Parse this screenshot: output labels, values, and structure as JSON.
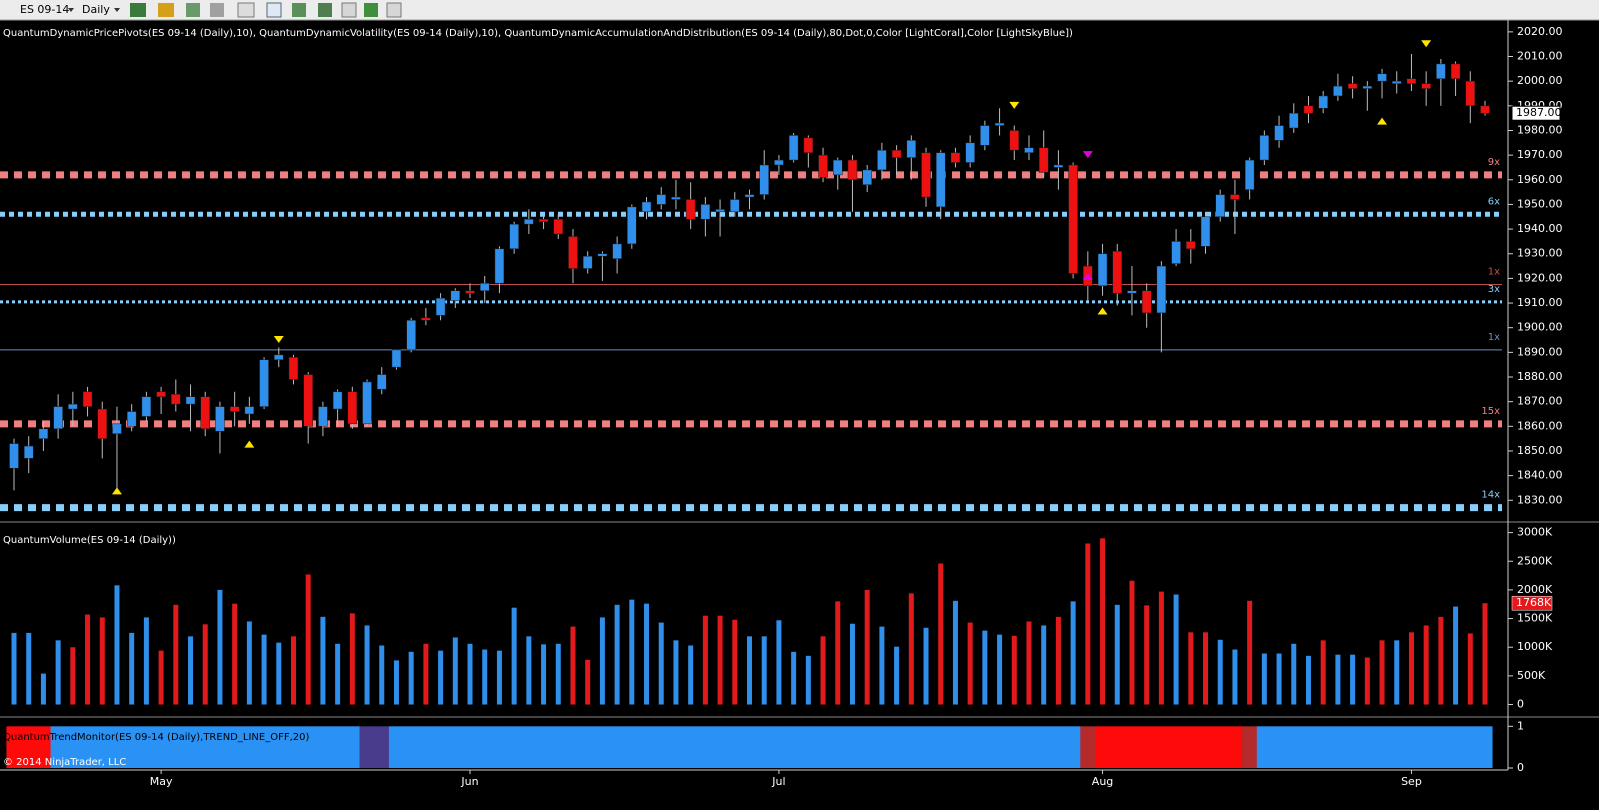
{
  "toolbar": {
    "instrument": "ES 09-14",
    "interval": "Daily"
  },
  "chart_data": [
    {
      "type": "candlestick",
      "title": "QuantumDynamicPricePivots(ES 09-14 (Daily),10), QuantumDynamicVolatility(ES 09-14 (Daily),10), QuantumDynamicAccumulationAndDistribution(ES 09-14 (Daily),80,Dot,0,Color [LightCoral],Color [LightSkyBlue])",
      "open": [
        1843,
        1847,
        1855,
        1859,
        1867,
        1874,
        1867,
        1857,
        1860,
        1864,
        1874,
        1873,
        1869,
        1872,
        1858,
        1868,
        1865,
        1868,
        1887,
        1888,
        1881,
        1860,
        1867,
        1874,
        1861,
        1875,
        1884,
        1891,
        1904,
        1905,
        1911,
        1915,
        1915,
        1918,
        1932,
        1942,
        1944,
        1944,
        1937,
        1924,
        1929,
        1928,
        1934,
        1947,
        1950,
        1952,
        1952,
        1944,
        1947,
        1947,
        1953,
        1954,
        1966,
        1968,
        1977,
        1970,
        1962,
        1968,
        1958,
        1964,
        1972,
        1969,
        1971,
        1949,
        1971,
        1967,
        1974,
        1982,
        1980,
        1971,
        1973,
        1965,
        1966,
        1925,
        1917,
        1931,
        1914,
        1915,
        1906,
        1926,
        1935,
        1933,
        1945,
        1954,
        1956,
        1968,
        1976,
        1981,
        1990,
        1989,
        1994,
        1999,
        1997,
        2000,
        1999,
        2001,
        1999,
        2001,
        2007,
        2000,
        1990
      ],
      "high": [
        1855,
        1856,
        1862,
        1873,
        1874,
        1876,
        1870,
        1868,
        1869,
        1874,
        1876,
        1879,
        1877,
        1874,
        1870,
        1874,
        1872,
        1888,
        1892,
        1889,
        1882,
        1870,
        1875,
        1876,
        1879,
        1884,
        1891,
        1904,
        1908,
        1914,
        1916,
        1918,
        1921,
        1933,
        1943,
        1948,
        1946,
        1946,
        1940,
        1931,
        1931,
        1937,
        1950,
        1953,
        1957,
        1960,
        1959,
        1953,
        1952,
        1955,
        1956,
        1972,
        1970,
        1979,
        1978,
        1973,
        1969,
        1970,
        1966,
        1975,
        1974,
        1978,
        1973,
        1972,
        1973,
        1978,
        1984,
        1989,
        1982,
        1978,
        1980,
        1972,
        1967,
        1931,
        1934,
        1934,
        1925,
        1918,
        1927,
        1940,
        1940,
        1947,
        1956,
        1960,
        1969,
        1980,
        1986,
        1991,
        1994,
        1996,
        2003,
        2002,
        2000,
        2005,
        2004,
        2011,
        2004,
        2009,
        2008,
        2004,
        1992
      ],
      "low": [
        1834,
        1841,
        1850,
        1855,
        1860,
        1864,
        1847,
        1834,
        1858,
        1862,
        1865,
        1866,
        1858,
        1856,
        1849,
        1860,
        1861,
        1867,
        1884,
        1877,
        1853,
        1856,
        1860,
        1859,
        1860,
        1873,
        1883,
        1890,
        1901,
        1903,
        1908,
        1912,
        1910,
        1914,
        1930,
        1938,
        1940,
        1936,
        1918,
        1922,
        1919,
        1922,
        1932,
        1944,
        1948,
        1948,
        1940,
        1937,
        1937,
        1945,
        1948,
        1952,
        1962,
        1967,
        1965,
        1959,
        1956,
        1947,
        1955,
        1960,
        1962,
        1960,
        1949,
        1944,
        1965,
        1965,
        1972,
        1978,
        1968,
        1968,
        1961,
        1956,
        1920,
        1910,
        1913,
        1909,
        1905,
        1900,
        1890,
        1925,
        1926,
        1930,
        1943,
        1938,
        1952,
        1966,
        1973,
        1979,
        1983,
        1987,
        1992,
        1993,
        1988,
        1993,
        1995,
        1996,
        1990,
        1990,
        1994,
        1983,
        1986
      ],
      "close": [
        1853,
        1852,
        1859,
        1868,
        1869,
        1868,
        1855,
        1861,
        1866,
        1872,
        1872,
        1869,
        1872,
        1859,
        1868,
        1866,
        1868,
        1887,
        1889,
        1879,
        1860,
        1868,
        1874,
        1861,
        1878,
        1881,
        1891,
        1903,
        1903,
        1912,
        1915,
        1914,
        1918,
        1932,
        1942,
        1944,
        1943,
        1938,
        1924,
        1929,
        1930,
        1934,
        1949,
        1951,
        1954,
        1953,
        1944,
        1950,
        1948,
        1952,
        1954,
        1966,
        1968,
        1978,
        1971,
        1961,
        1968,
        1960,
        1964,
        1972,
        1969,
        1976,
        1953,
        1971,
        1967,
        1975,
        1982,
        1983,
        1972,
        1973,
        1963,
        1966,
        1922,
        1917,
        1930,
        1914,
        1915,
        1906,
        1925,
        1935,
        1932,
        1945,
        1954,
        1952,
        1968,
        1978,
        1982,
        1987,
        1987,
        1994,
        1998,
        1997,
        1998,
        2003,
        2000,
        1999,
        1997,
        2007,
        2001,
        1990,
        1987
      ],
      "up_color": "#2f8fea",
      "down_color": "#ee1111",
      "wick_color": "#bdbdbd",
      "ylim": [
        1822,
        2024
      ],
      "yticks": [
        {
          "value": 1830,
          "label": "1830.00"
        },
        {
          "value": 1840,
          "label": "1840.00"
        },
        {
          "value": 1850,
          "label": "1850.00"
        },
        {
          "value": 1860,
          "label": "1860.00"
        },
        {
          "value": 1870,
          "label": "1870.00"
        },
        {
          "value": 1880,
          "label": "1880.00"
        },
        {
          "value": 1890,
          "label": "1890.00"
        },
        {
          "value": 1900,
          "label": "1900.00"
        },
        {
          "value": 1910,
          "label": "1910.00"
        },
        {
          "value": 1920,
          "label": "1920.00"
        },
        {
          "value": 1930,
          "label": "1930.00"
        },
        {
          "value": 1940,
          "label": "1940.00"
        },
        {
          "value": 1950,
          "label": "1950.00"
        },
        {
          "value": 1960,
          "label": "1960.00"
        },
        {
          "value": 1970,
          "label": "1970.00"
        },
        {
          "value": 1980,
          "label": "1980.00"
        },
        {
          "value": 1990,
          "label": "1990.00"
        },
        {
          "value": 2000,
          "label": "2000.00"
        },
        {
          "value": 2010,
          "label": "2010.00"
        },
        {
          "value": 2020,
          "label": "2020.00"
        }
      ],
      "levels": [
        {
          "value": 1962,
          "label": "9x",
          "color": "#f08080",
          "style": "dots-large"
        },
        {
          "value": 1946,
          "label": "6x",
          "color": "#87cefa",
          "style": "dots-medium"
        },
        {
          "value": 1917.5,
          "label": "1x",
          "color": "#c0504d",
          "style": "line"
        },
        {
          "value": 1910.5,
          "label": "3x",
          "color": "#87cefa",
          "style": "dots-small"
        },
        {
          "value": 1891,
          "label": "1x",
          "color": "#6a8fc0",
          "style": "line"
        },
        {
          "value": 1861,
          "label": "15x",
          "color": "#f08080",
          "style": "dots-large"
        },
        {
          "value": 1827,
          "label": "14x",
          "color": "#87cefa",
          "style": "dots-large"
        }
      ],
      "markers": [
        {
          "x": 7,
          "y": 1834,
          "color": "#ffe400",
          "direction": "up"
        },
        {
          "x": 16,
          "y": 1853,
          "color": "#ffe400",
          "direction": "up"
        },
        {
          "x": 18,
          "y": 1895,
          "color": "#ffe400",
          "direction": "down"
        },
        {
          "x": 68,
          "y": 1990,
          "color": "#ffe400",
          "direction": "down"
        },
        {
          "x": 73,
          "y": 1970,
          "color": "#e000e0",
          "direction": "down"
        },
        {
          "x": 73,
          "y": 1921,
          "color": "#e000e0",
          "direction": "up"
        },
        {
          "x": 74,
          "y": 1907,
          "color": "#ffe400",
          "direction": "up"
        },
        {
          "x": 93,
          "y": 1984,
          "color": "#ffe400",
          "direction": "up"
        },
        {
          "x": 96,
          "y": 2015,
          "color": "#ffe400",
          "direction": "down"
        }
      ],
      "last_price": {
        "value": 1987,
        "label": "1987.00"
      }
    },
    {
      "type": "bar",
      "title": "QuantumVolume(ES 09-14 (Daily))",
      "values": [
        1250,
        1250,
        540,
        1120,
        1000,
        1570,
        1520,
        2080,
        1250,
        1520,
        940,
        1740,
        1190,
        1400,
        2000,
        1760,
        1450,
        1220,
        1080,
        1190,
        2270,
        1530,
        1060,
        1590,
        1380,
        1030,
        770,
        920,
        1060,
        940,
        1170,
        1060,
        960,
        940,
        1690,
        1190,
        1050,
        1060,
        1360,
        780,
        1520,
        1740,
        1830,
        1760,
        1430,
        1120,
        1030,
        1550,
        1550,
        1480,
        1190,
        1190,
        1470,
        920,
        850,
        1190,
        1800,
        1410,
        2000,
        1360,
        1010,
        1940,
        1340,
        2460,
        1810,
        1430,
        1290,
        1220,
        1200,
        1450,
        1380,
        1530,
        1800,
        2810,
        2900,
        1740,
        2160,
        1730,
        1970,
        1920,
        1260,
        1260,
        1130,
        960,
        1810,
        890,
        890,
        1060,
        850,
        1120,
        870,
        870,
        820,
        1120,
        1120,
        1260,
        1380,
        1530,
        1710,
        1240,
        1768
      ],
      "colors": [
        "#2f8fea",
        "#2f8fea",
        "#2f8fea",
        "#2f8fea",
        "#e31a1c",
        "#e31a1c",
        "#e31a1c",
        "#2f8fea",
        "#2f8fea",
        "#2f8fea",
        "#e31a1c",
        "#e31a1c",
        "#2f8fea",
        "#e31a1c",
        "#2f8fea",
        "#e31a1c",
        "#2f8fea",
        "#2f8fea",
        "#2f8fea",
        "#e31a1c",
        "#e31a1c",
        "#2f8fea",
        "#2f8fea",
        "#e31a1c",
        "#2f8fea",
        "#2f8fea",
        "#2f8fea",
        "#2f8fea",
        "#e31a1c",
        "#2f8fea",
        "#2f8fea",
        "#2f8fea",
        "#2f8fea",
        "#2f8fea",
        "#2f8fea",
        "#2f8fea",
        "#2f8fea",
        "#2f8fea",
        "#e31a1c",
        "#e31a1c",
        "#2f8fea",
        "#2f8fea",
        "#2f8fea",
        "#2f8fea",
        "#2f8fea",
        "#2f8fea",
        "#2f8fea",
        "#e31a1c",
        "#e31a1c",
        "#e31a1c",
        "#2f8fea",
        "#2f8fea",
        "#2f8fea",
        "#2f8fea",
        "#2f8fea",
        "#e31a1c",
        "#e31a1c",
        "#2f8fea",
        "#e31a1c",
        "#2f8fea",
        "#2f8fea",
        "#e31a1c",
        "#2f8fea",
        "#e31a1c",
        "#2f8fea",
        "#e31a1c",
        "#2f8fea",
        "#2f8fea",
        "#e31a1c",
        "#e31a1c",
        "#2f8fea",
        "#e31a1c",
        "#2f8fea",
        "#e31a1c",
        "#e31a1c",
        "#2f8fea",
        "#e31a1c",
        "#e31a1c",
        "#e31a1c",
        "#2f8fea",
        "#e31a1c",
        "#e31a1c",
        "#2f8fea",
        "#2f8fea",
        "#e31a1c",
        "#2f8fea",
        "#2f8fea",
        "#2f8fea",
        "#2f8fea",
        "#e31a1c",
        "#2f8fea",
        "#2f8fea",
        "#e31a1c",
        "#e31a1c",
        "#2f8fea",
        "#e31a1c",
        "#e31a1c",
        "#e31a1c",
        "#2f8fea",
        "#e31a1c",
        "#e31a1c"
      ],
      "ylim": [
        -200,
        3150
      ],
      "yticks": [
        0,
        {
          "value": 500,
          "label": "500K"
        },
        {
          "value": 1000,
          "label": "1000K"
        },
        {
          "value": 1500,
          "label": "1500K"
        },
        {
          "value": 2000,
          "label": "2000K"
        },
        {
          "value": 2500,
          "label": "2500K"
        },
        {
          "value": 3000,
          "label": "3000K"
        }
      ],
      "last_value": {
        "value": 1768,
        "label": "1768K"
      }
    },
    {
      "type": "bar",
      "title": "QuantumTrendMonitor(ES 09-14 (Daily),TREND_LINE_OFF,20)",
      "copyright": "© 2014 NinjaTrader, LLC",
      "categories": [
        null,
        null,
        null,
        null,
        null,
        null,
        null,
        null,
        null,
        null,
        "May",
        null,
        null,
        null,
        null,
        null,
        null,
        null,
        null,
        null,
        null,
        null,
        null,
        null,
        null,
        null,
        null,
        null,
        null,
        null,
        null,
        "Jun",
        null,
        null,
        null,
        null,
        null,
        null,
        null,
        null,
        null,
        null,
        null,
        null,
        null,
        null,
        null,
        null,
        null,
        null,
        null,
        null,
        "Jul",
        null,
        null,
        null,
        null,
        null,
        null,
        null,
        null,
        null,
        null,
        null,
        null,
        null,
        null,
        null,
        null,
        null,
        null,
        null,
        null,
        null,
        "Aug",
        null,
        null,
        null,
        null,
        null,
        null,
        null,
        null,
        null,
        null,
        null,
        null,
        null,
        null,
        null,
        null,
        null,
        null,
        null,
        null,
        "Sep",
        null,
        null,
        null,
        null,
        null
      ],
      "values": [
        1,
        1,
        1,
        1,
        1,
        1,
        1,
        1,
        1,
        1,
        1,
        1,
        1,
        1,
        1,
        1,
        1,
        1,
        1,
        1,
        1,
        1,
        1,
        1,
        1,
        1,
        1,
        1,
        1,
        1,
        1,
        1,
        1,
        1,
        1,
        1,
        1,
        1,
        1,
        1,
        1,
        1,
        1,
        1,
        1,
        1,
        1,
        1,
        1,
        1,
        1,
        1,
        1,
        1,
        1,
        1,
        1,
        1,
        1,
        1,
        1,
        1,
        1,
        1,
        1,
        1,
        1,
        1,
        1,
        1,
        1,
        1,
        1,
        1,
        1,
        1,
        1,
        1,
        1,
        1,
        1,
        1,
        1,
        1,
        1,
        1,
        1,
        1,
        1,
        1,
        1,
        1,
        1,
        1,
        1,
        1,
        1,
        1,
        1,
        1,
        1
      ],
      "colors": [
        "#ff0a0a",
        "#ff0a0a",
        "#ff0a0a",
        "#2a92f5",
        "#2a92f5",
        "#2a92f5",
        "#2a92f5",
        "#2a92f5",
        "#2a92f5",
        "#2a92f5",
        "#2a92f5",
        "#2a92f5",
        "#2a92f5",
        "#2a92f5",
        "#2a92f5",
        "#2a92f5",
        "#2a92f5",
        "#2a92f5",
        "#2a92f5",
        "#2a92f5",
        "#2a92f5",
        "#2a92f5",
        "#2a92f5",
        "#2a92f5",
        "#4a3c8c",
        "#4a3c8c",
        "#2a92f5",
        "#2a92f5",
        "#2a92f5",
        "#2a92f5",
        "#2a92f5",
        "#2a92f5",
        "#2a92f5",
        "#2a92f5",
        "#2a92f5",
        "#2a92f5",
        "#2a92f5",
        "#2a92f5",
        "#2a92f5",
        "#2a92f5",
        "#2a92f5",
        "#2a92f5",
        "#2a92f5",
        "#2a92f5",
        "#2a92f5",
        "#2a92f5",
        "#2a92f5",
        "#2a92f5",
        "#2a92f5",
        "#2a92f5",
        "#2a92f5",
        "#2a92f5",
        "#2a92f5",
        "#2a92f5",
        "#2a92f5",
        "#2a92f5",
        "#2a92f5",
        "#2a92f5",
        "#2a92f5",
        "#2a92f5",
        "#2a92f5",
        "#2a92f5",
        "#2a92f5",
        "#2a92f5",
        "#2a92f5",
        "#2a92f5",
        "#2a92f5",
        "#2a92f5",
        "#2a92f5",
        "#2a92f5",
        "#2a92f5",
        "#2a92f5",
        "#2a92f5",
        "#b52a2a",
        "#ff0a0a",
        "#ff0a0a",
        "#ff0a0a",
        "#ff0a0a",
        "#ff0a0a",
        "#ff0a0a",
        "#ff0a0a",
        "#ff0a0a",
        "#ff0a0a",
        "#ff0a0a",
        "#b52a2a",
        "#2a92f5",
        "#2a92f5",
        "#2a92f5",
        "#2a92f5",
        "#2a92f5",
        "#2a92f5",
        "#2a92f5",
        "#2a92f5",
        "#2a92f5",
        "#2a92f5",
        "#2a92f5",
        "#2a92f5",
        "#2a92f5",
        "#2a92f5",
        "#2a92f5",
        "#2a92f5"
      ],
      "ylim": [
        0,
        1.2
      ],
      "yticks": [
        0,
        1
      ]
    }
  ]
}
